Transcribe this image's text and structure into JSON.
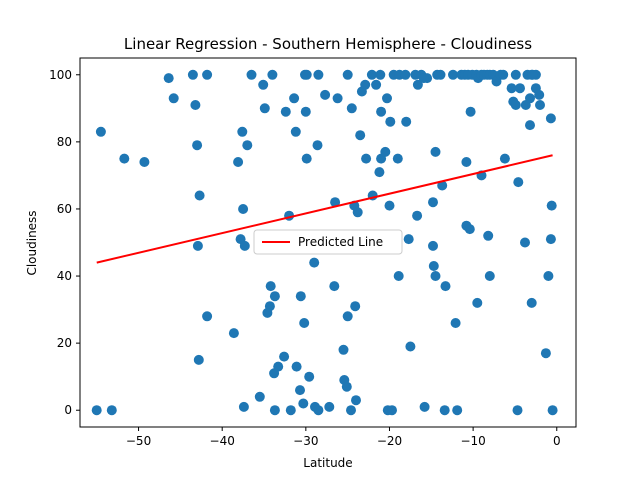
{
  "chart_data": {
    "type": "scatter",
    "title": "Linear Regression - Southern Hemisphere - Cloudiness",
    "xlabel": "Latitude",
    "ylabel": "Cloudiness",
    "xlim": [
      -57,
      2.3
    ],
    "ylim": [
      -5,
      105
    ],
    "xticks": [
      -50,
      -40,
      -30,
      -20,
      -10,
      0
    ],
    "yticks": [
      0,
      20,
      40,
      60,
      80,
      100
    ],
    "grid": false,
    "legend": {
      "placement": "center",
      "entries": [
        "Predicted Line"
      ]
    },
    "colors": {
      "points": "#1f77b4",
      "line": "#ff0000"
    },
    "regression": {
      "x": [
        -55,
        -0.5
      ],
      "y": [
        44,
        76
      ]
    },
    "points": [
      [
        -46.4,
        99
      ],
      [
        -43.5,
        100
      ],
      [
        -41.8,
        100
      ],
      [
        -36.5,
        100
      ],
      [
        -34.0,
        100
      ],
      [
        -30.1,
        100
      ],
      [
        -29.9,
        100
      ],
      [
        -28.5,
        100
      ],
      [
        -25.0,
        100
      ],
      [
        -22.1,
        100
      ],
      [
        -21.1,
        100
      ],
      [
        -19.5,
        100
      ],
      [
        -18.8,
        100
      ],
      [
        -18.1,
        100
      ],
      [
        -16.9,
        100
      ],
      [
        -16.2,
        100
      ],
      [
        -15.5,
        99
      ],
      [
        -14.3,
        100
      ],
      [
        -13.9,
        100
      ],
      [
        -12.4,
        100
      ],
      [
        -11.4,
        100
      ],
      [
        -11.0,
        100
      ],
      [
        -10.6,
        100
      ],
      [
        -10.1,
        100
      ],
      [
        -9.6,
        100
      ],
      [
        -9.4,
        99
      ],
      [
        -9.0,
        100
      ],
      [
        -8.7,
        100
      ],
      [
        -8.3,
        100
      ],
      [
        -8.0,
        100
      ],
      [
        -7.6,
        100
      ],
      [
        -7.2,
        98
      ],
      [
        -6.7,
        100
      ],
      [
        -6.4,
        100
      ],
      [
        -4.9,
        100
      ],
      [
        -3.5,
        100
      ],
      [
        -3.0,
        100
      ],
      [
        -2.5,
        100
      ],
      [
        -45.8,
        93
      ],
      [
        -43.2,
        91
      ],
      [
        -35.1,
        97
      ],
      [
        -34.9,
        90
      ],
      [
        -32.4,
        89
      ],
      [
        -31.4,
        93
      ],
      [
        -30.0,
        89
      ],
      [
        -27.7,
        94
      ],
      [
        -26.2,
        93
      ],
      [
        -24.5,
        90
      ],
      [
        -23.3,
        95
      ],
      [
        -22.9,
        97
      ],
      [
        -21.6,
        97
      ],
      [
        -21.0,
        89
      ],
      [
        -20.3,
        93
      ],
      [
        -16.6,
        97
      ],
      [
        -15.9,
        99
      ],
      [
        -10.3,
        89
      ],
      [
        -5.4,
        96
      ],
      [
        -5.2,
        92
      ],
      [
        -4.9,
        91
      ],
      [
        -4.4,
        96
      ],
      [
        -3.7,
        91
      ],
      [
        -3.2,
        93
      ],
      [
        -2.9,
        100
      ],
      [
        -2.5,
        96
      ],
      [
        -2.1,
        94
      ],
      [
        -2.0,
        91
      ],
      [
        -54.5,
        83
      ],
      [
        -51.7,
        75
      ],
      [
        -49.3,
        74
      ],
      [
        -43.0,
        79
      ],
      [
        -37.6,
        83
      ],
      [
        -37.0,
        79
      ],
      [
        -38.1,
        74
      ],
      [
        -31.2,
        83
      ],
      [
        -29.9,
        75
      ],
      [
        -28.6,
        79
      ],
      [
        -23.5,
        82
      ],
      [
        -22.8,
        75
      ],
      [
        -21.0,
        75
      ],
      [
        -20.5,
        77
      ],
      [
        -19.9,
        86
      ],
      [
        -19.0,
        75
      ],
      [
        -18.0,
        86
      ],
      [
        -14.5,
        77
      ],
      [
        -10.8,
        74
      ],
      [
        -9.0,
        70
      ],
      [
        -6.2,
        75
      ],
      [
        -4.6,
        68
      ],
      [
        -3.2,
        85
      ],
      [
        -0.7,
        87
      ],
      [
        -42.7,
        64
      ],
      [
        -37.5,
        60
      ],
      [
        -32.0,
        58
      ],
      [
        -26.5,
        62
      ],
      [
        -24.2,
        61
      ],
      [
        -23.8,
        59
      ],
      [
        -22.0,
        64
      ],
      [
        -21.2,
        71
      ],
      [
        -20.0,
        61
      ],
      [
        -16.7,
        58
      ],
      [
        -14.8,
        62
      ],
      [
        -13.7,
        67
      ],
      [
        -10.8,
        55
      ],
      [
        -10.4,
        54
      ],
      [
        -8.2,
        52
      ],
      [
        -3.8,
        50
      ],
      [
        -0.6,
        61
      ],
      [
        -0.7,
        51
      ],
      [
        -42.9,
        49
      ],
      [
        -37.8,
        51
      ],
      [
        -37.3,
        49
      ],
      [
        -17.7,
        51
      ],
      [
        -14.8,
        49
      ],
      [
        -29.0,
        44
      ],
      [
        -14.7,
        43
      ],
      [
        -14.5,
        40
      ],
      [
        -18.9,
        40
      ],
      [
        -8.0,
        40
      ],
      [
        -1.0,
        40
      ],
      [
        -34.2,
        37
      ],
      [
        -33.7,
        34
      ],
      [
        -34.3,
        31
      ],
      [
        -34.6,
        29
      ],
      [
        -30.6,
        34
      ],
      [
        -30.2,
        26
      ],
      [
        -26.6,
        37
      ],
      [
        -24.1,
        31
      ],
      [
        -25.0,
        28
      ],
      [
        -41.8,
        28
      ],
      [
        -13.3,
        37
      ],
      [
        -9.5,
        32
      ],
      [
        -3.0,
        32
      ],
      [
        -12.1,
        26
      ],
      [
        -38.6,
        23
      ],
      [
        -42.8,
        15
      ],
      [
        -17.5,
        19
      ],
      [
        -1.3,
        17
      ],
      [
        -25.5,
        18
      ],
      [
        -32.6,
        16
      ],
      [
        -31.1,
        13
      ],
      [
        -33.8,
        11
      ],
      [
        -33.3,
        13
      ],
      [
        -29.6,
        10
      ],
      [
        -25.4,
        9
      ],
      [
        -25.1,
        7
      ],
      [
        -30.7,
        6
      ],
      [
        -24.0,
        3
      ],
      [
        -30.3,
        2
      ],
      [
        -28.9,
        1
      ],
      [
        -28.5,
        0
      ],
      [
        -27.2,
        1
      ],
      [
        -37.4,
        1
      ],
      [
        -35.5,
        4
      ],
      [
        -33.7,
        0
      ],
      [
        -31.8,
        0
      ],
      [
        -24.6,
        0
      ],
      [
        -20.2,
        0
      ],
      [
        -19.7,
        0
      ],
      [
        -15.8,
        1
      ],
      [
        -13.4,
        0
      ],
      [
        -11.9,
        0
      ],
      [
        -4.7,
        0
      ],
      [
        -0.5,
        0
      ],
      [
        -55.0,
        0
      ],
      [
        -53.2,
        0
      ]
    ]
  }
}
